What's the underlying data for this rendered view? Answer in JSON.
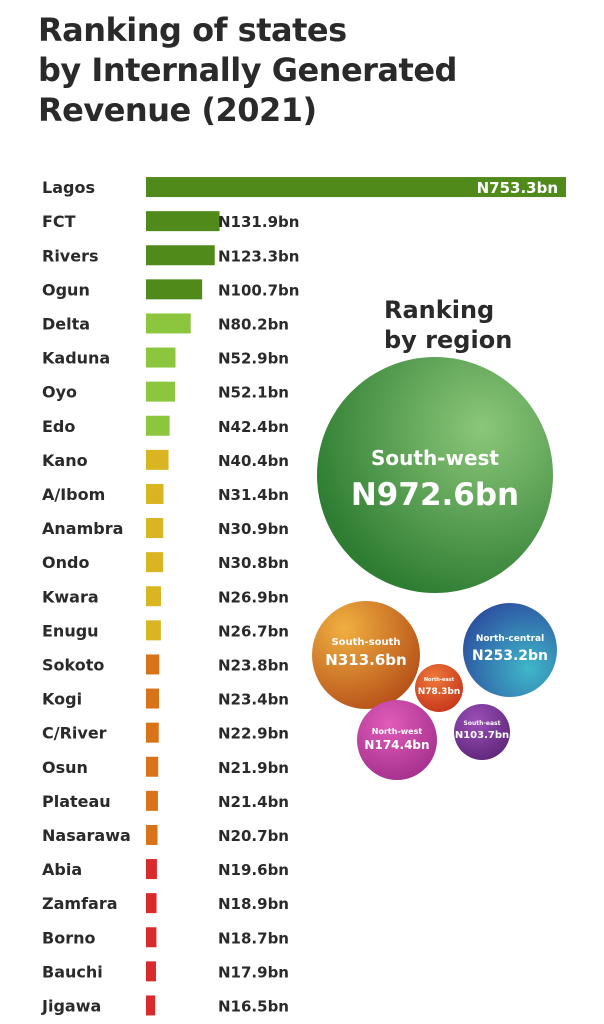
{
  "title_lines": [
    "Ranking of states",
    "by Internally Generated",
    "Revenue (2021)"
  ],
  "region_title_lines": [
    "Ranking",
    "by region"
  ],
  "colors": {
    "dark_green": "#4f8a1a",
    "light_green": "#8cc63f",
    "yellow": "#d9b521",
    "orange": "#d9731a",
    "red": "#d92b2b"
  },
  "chart_data": [
    {
      "type": "bar",
      "orientation": "horizontal",
      "title": "Ranking of states by Internally Generated Revenue (2021)",
      "unit": "N billion",
      "categories": [
        "Lagos",
        "FCT",
        "Rivers",
        "Ogun",
        "Delta",
        "Kaduna",
        "Oyo",
        "Edo",
        "Kano",
        "A/Ibom",
        "Anambra",
        "Ondo",
        "Kwara",
        "Enugu",
        "Sokoto",
        "Kogi",
        "C/River",
        "Osun",
        "Plateau",
        "Nasarawa",
        "Abia",
        "Zamfara",
        "Borno",
        "Bauchi",
        "Jigawa"
      ],
      "values": [
        753.3,
        131.9,
        123.3,
        100.7,
        80.2,
        52.9,
        52.1,
        42.4,
        40.4,
        31.4,
        30.9,
        30.8,
        26.9,
        26.7,
        23.8,
        23.4,
        22.9,
        21.9,
        21.4,
        20.7,
        19.6,
        18.9,
        18.7,
        17.9,
        16.5
      ],
      "labels": [
        "N753.3bn",
        "N131.9bn",
        "N123.3bn",
        "N100.7bn",
        "N80.2bn",
        "N52.9bn",
        "N52.1bn",
        "N42.4bn",
        "N40.4bn",
        "N31.4bn",
        "N30.9bn",
        "N30.8bn",
        "N26.9bn",
        "N26.7bn",
        "N23.8bn",
        "N23.4bn",
        "N22.9bn",
        "N21.9bn",
        "N21.4bn",
        "N20.7bn",
        "N19.6bn",
        "N18.9bn",
        "N18.7bn",
        "N17.9bn",
        "N16.5bn"
      ],
      "color_groups": [
        "dark_green",
        "dark_green",
        "dark_green",
        "dark_green",
        "light_green",
        "light_green",
        "light_green",
        "light_green",
        "yellow",
        "yellow",
        "yellow",
        "yellow",
        "yellow",
        "yellow",
        "orange",
        "orange",
        "orange",
        "orange",
        "orange",
        "orange",
        "red",
        "red",
        "red",
        "red",
        "red"
      ]
    },
    {
      "type": "bubble",
      "title": "Ranking by region",
      "unit": "N billion",
      "series": [
        {
          "name": "South-west",
          "value": 972.6,
          "label": "N972.6bn",
          "color": "#2e8b3a"
        },
        {
          "name": "South-south",
          "value": 313.6,
          "label": "N313.6bn",
          "color": "#e08a1e"
        },
        {
          "name": "North-central",
          "value": 253.2,
          "label": "N253.2bn",
          "color": "#2f6fb3"
        },
        {
          "name": "North-west",
          "value": 174.4,
          "label": "N174.4bn",
          "color": "#c23fa0"
        },
        {
          "name": "South-east",
          "value": 103.7,
          "label": "N103.7bn",
          "color": "#7a2d8f"
        },
        {
          "name": "North-east",
          "value": 78.3,
          "label": "N78.3bn",
          "color": "#d9531e"
        }
      ]
    }
  ]
}
